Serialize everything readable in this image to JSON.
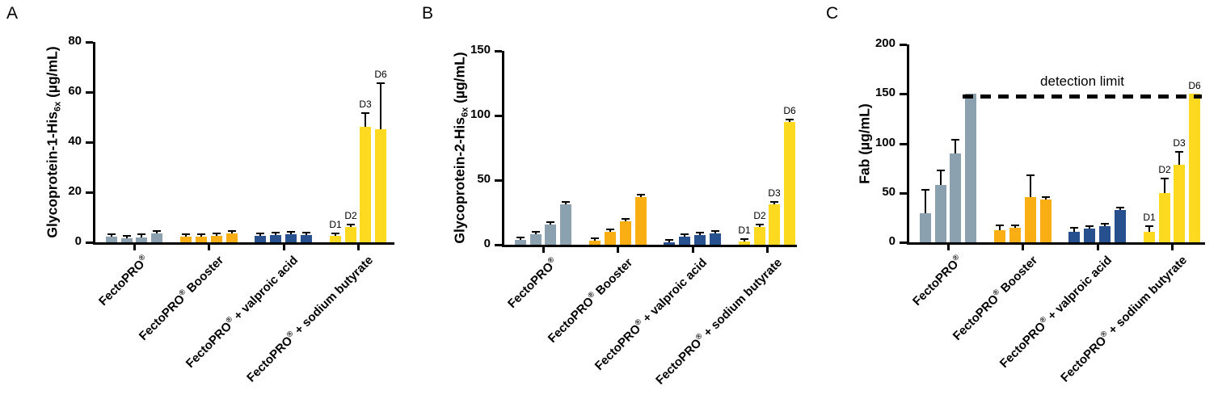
{
  "figure": {
    "background": "#ffffff",
    "panel_letters": [
      "A",
      "B",
      "C"
    ]
  },
  "colors": {
    "fectopro": "#8CA1AF",
    "fectopro_booster": "#F9AE13",
    "fectopro_valproic_acid": "#26508E",
    "fectopro_sodium_butyrate": "#FDD920",
    "axis": "#000000"
  },
  "chart_data": [
    {
      "type": "bar",
      "panel_label": "A",
      "ylabel": "Glycoprotein-1-His6x (µg/mL)",
      "ylabel_parts": {
        "main": "Glycoprotein-1-His",
        "sub": "6x",
        "unit": " (µg/mL)"
      },
      "ylim": [
        0,
        80
      ],
      "yticks": [
        0,
        20,
        40,
        60,
        80
      ],
      "grid": false,
      "legend": null,
      "categories": [
        "FectoPRO®",
        "FectoPRO® Booster",
        "FectoPRO® + valproic acid",
        "FectoPRO® + sodium butyrate"
      ],
      "groups": [
        {
          "category_parts": {
            "pre": "FectoPRO",
            "sup": "®",
            "post": ""
          },
          "color": "#8CA1AF",
          "values": [
            2.3,
            1.6,
            2.0,
            3.5
          ],
          "errors": [
            0.5,
            0.4,
            1.0,
            0.3
          ],
          "bar_labels": [
            "",
            "",
            "",
            ""
          ]
        },
        {
          "category_parts": {
            "pre": "FectoPRO",
            "sup": "®",
            "post": " Booster"
          },
          "color": "#F9AE13",
          "values": [
            2.2,
            2.1,
            2.6,
            3.6
          ],
          "errors": [
            0.4,
            0.4,
            0.5,
            0.4
          ],
          "bar_labels": [
            "",
            "",
            "",
            ""
          ]
        },
        {
          "category_parts": {
            "pre": "FectoPRO",
            "sup": "®",
            "post": " + valproic acid"
          },
          "color": "#26508E",
          "values": [
            2.6,
            3.0,
            3.1,
            3.0
          ],
          "errors": [
            0.4,
            0.4,
            0.4,
            0.4
          ],
          "bar_labels": [
            "",
            "",
            "",
            ""
          ]
        },
        {
          "category_parts": {
            "pre": "FectoPRO",
            "sup": "®",
            "post": " + sodium butyrate"
          },
          "color": "#FDD920",
          "values": [
            2.5,
            6.0,
            46.0,
            45.0
          ],
          "errors": [
            0.5,
            0.6,
            5.0,
            18.0
          ],
          "bar_labels": [
            "D1",
            "D2",
            "D3",
            "D6"
          ]
        }
      ]
    },
    {
      "type": "bar",
      "panel_label": "B",
      "ylabel": "Glycoprotein-2-His6x (µg/mL)",
      "ylabel_parts": {
        "main": "Glycoprotein-2-His",
        "sub": "6x",
        "unit": " (µg/mL)"
      },
      "ylim": [
        0,
        150
      ],
      "yticks": [
        0,
        50,
        100,
        150
      ],
      "grid": false,
      "legend": null,
      "categories": [
        "FectoPRO®",
        "FectoPRO® Booster",
        "FectoPRO® + valproic acid",
        "FectoPRO® + sodium butyrate"
      ],
      "groups": [
        {
          "category_parts": {
            "pre": "FectoPRO",
            "sup": "®",
            "post": ""
          },
          "color": "#8CA1AF",
          "values": [
            3.5,
            8.0,
            15.5,
            31.5
          ],
          "errors": [
            0.7,
            0.7,
            1.2,
            0.7
          ],
          "bar_labels": [
            "",
            "",
            "",
            ""
          ]
        },
        {
          "category_parts": {
            "pre": "FectoPRO",
            "sup": "®",
            "post": " Booster"
          },
          "color": "#F9AE13",
          "values": [
            3.0,
            10.0,
            18.0,
            37.0
          ],
          "errors": [
            0.5,
            0.8,
            1.0,
            0.6
          ],
          "bar_labels": [
            "",
            "",
            "",
            ""
          ]
        },
        {
          "category_parts": {
            "pre": "FectoPRO",
            "sup": "®",
            "post": " + valproic acid"
          },
          "color": "#26508E",
          "values": [
            2.0,
            6.0,
            7.5,
            9.0
          ],
          "errors": [
            0.4,
            0.4,
            0.5,
            0.5
          ],
          "bar_labels": [
            "",
            "",
            "",
            ""
          ]
        },
        {
          "category_parts": {
            "pre": "FectoPRO",
            "sup": "®",
            "post": " + sodium butyrate"
          },
          "color": "#FDD920",
          "values": [
            2.5,
            14.0,
            31.0,
            95.0
          ],
          "errors": [
            0.4,
            0.7,
            0.8,
            1.0
          ],
          "bar_labels": [
            "D1",
            "D2",
            "D3",
            "D6"
          ]
        }
      ]
    },
    {
      "type": "bar",
      "panel_label": "C",
      "ylabel": "Fab (µg/mL)",
      "ylabel_parts": {
        "main": "Fab",
        "sub": "",
        "unit": " (µg/mL)"
      },
      "ylim": [
        0,
        200
      ],
      "yticks": [
        0,
        50,
        100,
        150,
        200
      ],
      "grid": false,
      "legend": null,
      "categories": [
        "FectoPRO®",
        "FectoPRO® Booster",
        "FectoPRO® + valproic acid",
        "FectoPRO® + sodium butyrate"
      ],
      "annotation": {
        "text": "detection limit",
        "y": 148,
        "line_style": "dashed",
        "from_bar": [
          0,
          3
        ],
        "to_bar": [
          3,
          3
        ]
      },
      "groups": [
        {
          "category_parts": {
            "pre": "FectoPRO",
            "sup": "®",
            "post": ""
          },
          "color": "#8CA1AF",
          "values": [
            29.0,
            58.0,
            90.0,
            150.0
          ],
          "errors": [
            23.0,
            14.0,
            13.0,
            0
          ],
          "bar_labels": [
            "",
            "",
            "",
            ""
          ]
        },
        {
          "category_parts": {
            "pre": "FectoPRO",
            "sup": "®",
            "post": " Booster"
          },
          "color": "#F9AE13",
          "values": [
            12.0,
            15.0,
            46.0,
            43.0
          ],
          "errors": [
            4.0,
            2.0,
            21.0,
            1.0
          ],
          "bar_labels": [
            "",
            "",
            "",
            ""
          ]
        },
        {
          "category_parts": {
            "pre": "FectoPRO",
            "sup": "®",
            "post": " + valproic acid"
          },
          "color": "#26508E",
          "values": [
            11.0,
            14.0,
            16.0,
            33.0
          ],
          "errors": [
            3.0,
            1.5,
            1.0,
            0.7
          ],
          "bar_labels": [
            "",
            "",
            "",
            ""
          ]
        },
        {
          "category_parts": {
            "pre": "FectoPRO",
            "sup": "®",
            "post": " + sodium butyrate"
          },
          "color": "#FDD920",
          "values": [
            11.0,
            50.0,
            78.0,
            150.0
          ],
          "errors": [
            5.0,
            14.0,
            12.0,
            0
          ],
          "bar_labels": [
            "D1",
            "D2",
            "D3",
            "D6"
          ]
        }
      ]
    }
  ]
}
